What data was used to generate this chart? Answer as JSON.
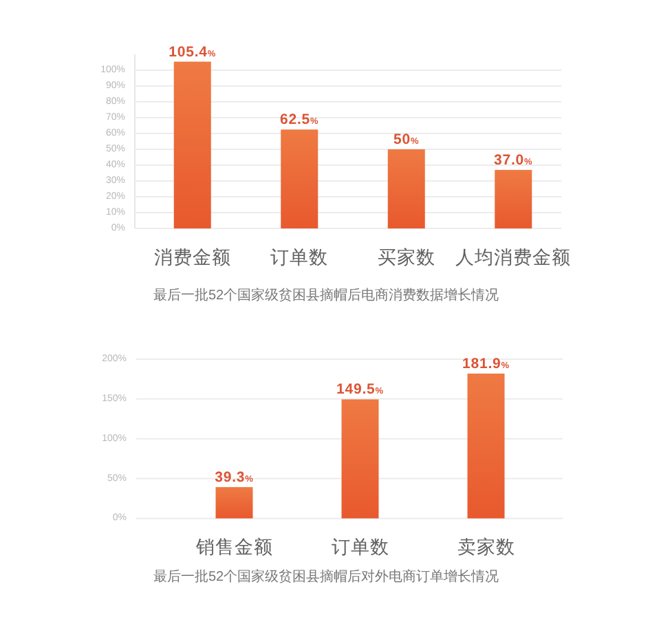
{
  "chart_data": [
    {
      "type": "bar",
      "title": "最后一批52个国家级贫困县摘帽后电商消费数据增长情况",
      "categories": [
        "消费金额",
        "订单数",
        "买家数",
        "人均消费金额"
      ],
      "values": [
        105.4,
        62.5,
        50,
        37.0
      ],
      "value_labels": [
        "105.4%",
        "62.5%",
        "50%",
        "37.0%"
      ],
      "color": "#ec6a36",
      "ylim": [
        0,
        110
      ],
      "yticks": [
        {
          "value": 0,
          "label": "0%"
        },
        {
          "value": 10,
          "label": "10%"
        },
        {
          "value": 20,
          "label": "20%"
        },
        {
          "value": 30,
          "label": "30%"
        },
        {
          "value": 40,
          "label": "40%"
        },
        {
          "value": 50,
          "label": "50%"
        },
        {
          "value": 60,
          "label": "60%"
        },
        {
          "value": 70,
          "label": "70%"
        },
        {
          "value": 80,
          "label": "80%"
        },
        {
          "value": 90,
          "label": "90%"
        },
        {
          "value": 100,
          "label": "100%"
        }
      ],
      "grid": "y"
    },
    {
      "type": "bar",
      "title": "最后一批52个国家级贫困县摘帽后对外电商订单增长情况",
      "categories": [
        "销售金额",
        "订单数",
        "卖家数"
      ],
      "values": [
        39.3,
        149.5,
        181.9
      ],
      "value_labels": [
        "39.3%",
        "149.5%",
        "181.9%"
      ],
      "color": "#ec6a36",
      "ylim": [
        0,
        200
      ],
      "yticks": [
        {
          "value": 0,
          "label": "0%"
        },
        {
          "value": 50,
          "label": "50%"
        },
        {
          "value": 100,
          "label": "100%"
        },
        {
          "value": 150,
          "label": "150%"
        },
        {
          "value": 200,
          "label": "200%"
        }
      ],
      "grid": "y"
    }
  ]
}
